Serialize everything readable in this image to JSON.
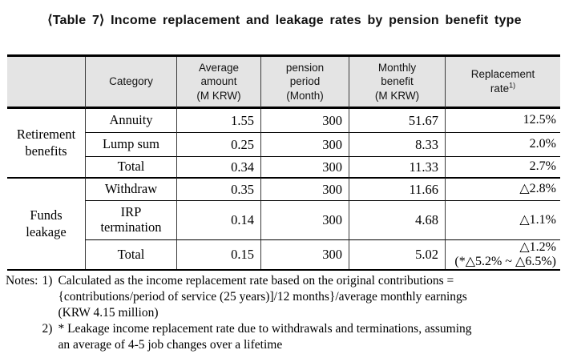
{
  "title": "⟨Table 7⟩ Income replacement and leakage rates by pension benefit type",
  "table": {
    "headers": {
      "corner": "",
      "category": "Category",
      "avg_amount": "Average\namount\n(M KRW)",
      "pension_period": "pension\nperiod\n(Month)",
      "monthly_benefit": "Monthly\nbenefit\n(M KRW)",
      "replacement_rate": "Replacement\nrate",
      "replacement_rate_sup": "1)"
    },
    "groups": [
      {
        "label": "Retirement\nbenefits",
        "rows": [
          {
            "category": "Annuity",
            "avg_amount": "1.55",
            "pension_period": "300",
            "monthly_benefit": "51.67",
            "replacement_rate": "12.5%"
          },
          {
            "category": "Lump sum",
            "avg_amount": "0.25",
            "pension_period": "300",
            "monthly_benefit": "8.33",
            "replacement_rate": "2.0%"
          },
          {
            "category": "Total",
            "avg_amount": "0.34",
            "pension_period": "300",
            "monthly_benefit": "11.33",
            "replacement_rate": "2.7%"
          }
        ]
      },
      {
        "label": "Funds\nleakage",
        "rows": [
          {
            "category": "Withdraw",
            "avg_amount": "0.35",
            "pension_period": "300",
            "monthly_benefit": "11.66",
            "replacement_rate": "△2.8%"
          },
          {
            "category": "IRP\ntermination",
            "avg_amount": "0.14",
            "pension_period": "300",
            "monthly_benefit": "4.68",
            "replacement_rate": "△1.1%"
          },
          {
            "category": "Total",
            "avg_amount": "0.15",
            "pension_period": "300",
            "monthly_benefit": "5.02",
            "replacement_rate": "△1.2%\n(*△5.2% ~ △6.5%)"
          }
        ]
      }
    ]
  },
  "notes": {
    "label": "Notes:",
    "items": [
      {
        "num": "1)",
        "text": "Calculated as the income replacement rate based on the original contributions =\n{contributions/period of service (25 years)]/12 months}/average monthly earnings\n(KRW 4.15 million)"
      },
      {
        "num": "2)",
        "text": "* Leakage income replacement rate due to withdrawals and terminations, assuming\nan average of 4-5 job changes over a lifetime"
      }
    ]
  },
  "colors": {
    "header_bg": "#e4e4e4",
    "line_color": "#000000",
    "vline_color": "#3a3a3a"
  }
}
